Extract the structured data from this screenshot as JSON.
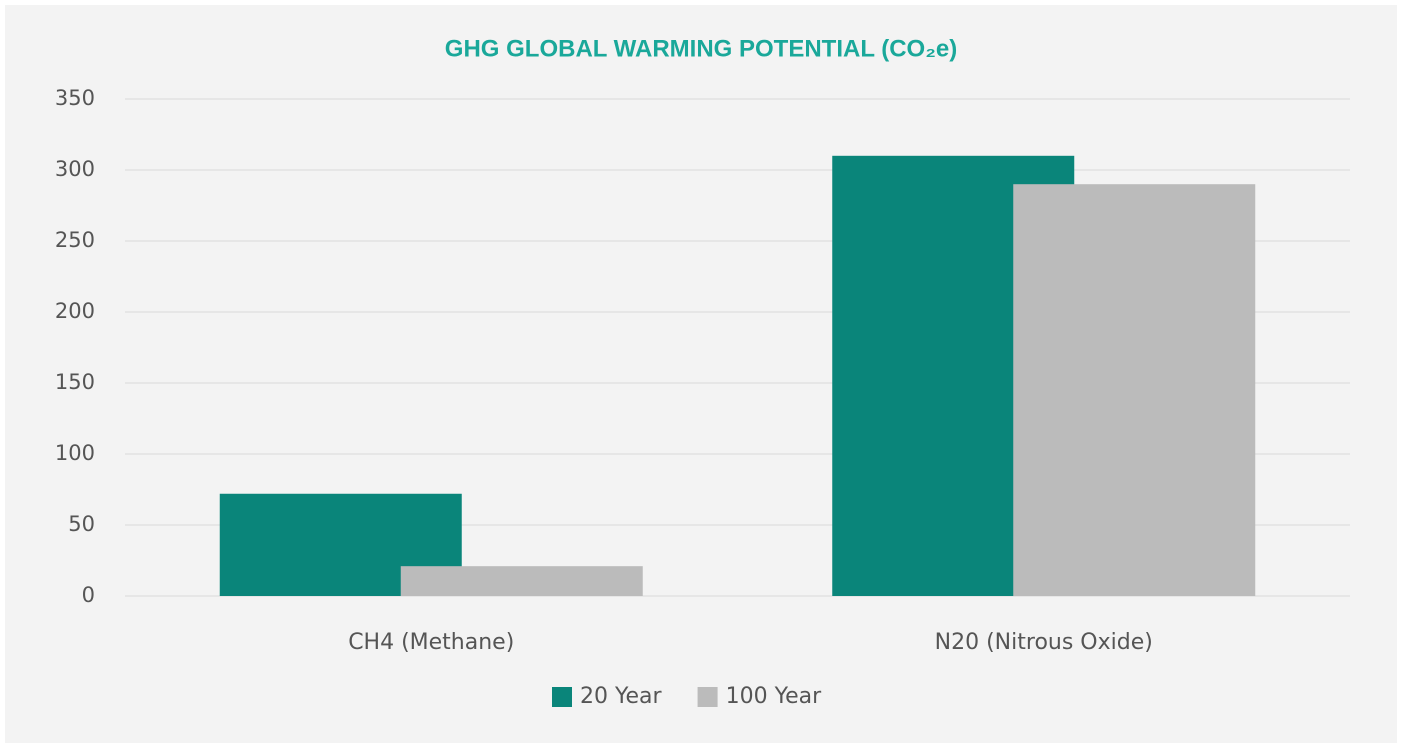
{
  "chart_data": {
    "type": "bar",
    "title": "GHG GLOBAL WARMING POTENTIAL (CO₂e)",
    "categories": [
      "CH4 (Methane)",
      "N20 (Nitrous Oxide)"
    ],
    "series": [
      {
        "name": "20 Year",
        "color": "#0a857a",
        "values": [
          72,
          310
        ]
      },
      {
        "name": "100 Year",
        "color": "#bbbbbb",
        "values": [
          21,
          290
        ]
      }
    ],
    "ylim": [
      0,
      350
    ],
    "yticks": [
      0,
      50,
      100,
      150,
      200,
      250,
      300,
      350
    ],
    "grid": true,
    "legend": "bottom"
  }
}
